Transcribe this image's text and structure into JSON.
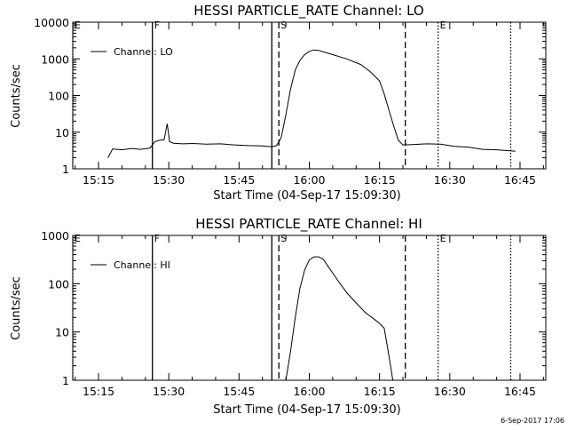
{
  "stamp": "6-Sep-2017 17:06",
  "chart_data": [
    {
      "type": "line",
      "title": "HESSI PARTICLE_RATE Channel: LO",
      "xlabel": "Start Time (04-Sep-17 15:09:30)",
      "ylabel": "Counts/sec",
      "yscale": "log",
      "ylim": [
        1,
        10000
      ],
      "xlim": [
        "15:09:30",
        "16:50:30"
      ],
      "xticks": [
        "15:15",
        "15:30",
        "15:45",
        "16:00",
        "16:15",
        "16:30",
        "16:45"
      ],
      "yticks": [
        "1",
        "10",
        "100",
        "1000",
        "10000"
      ],
      "legend": {
        "position": "top-left",
        "entries": [
          "Channel: LO"
        ]
      },
      "markers": [
        {
          "label": "F",
          "time": "15:26:30",
          "style": "solid"
        },
        {
          "label": "",
          "time": "15:52:00",
          "style": "solid"
        },
        {
          "label": "S",
          "time": "15:53:30",
          "style": "dashed"
        },
        {
          "label": "",
          "time": "16:20:30",
          "style": "dashed"
        },
        {
          "label": "E",
          "time": "16:27:30",
          "style": "dotted"
        },
        {
          "label": "",
          "time": "16:43:00",
          "style": "dotted"
        }
      ],
      "edge_markers": [
        {
          "label": "E",
          "time": "15:09:30",
          "style": "dotted"
        }
      ],
      "series": [
        {
          "name": "Channel: LO",
          "x": [
            "15:17:00",
            "15:18:00",
            "15:20:00",
            "15:22:00",
            "15:24:00",
            "15:26:00",
            "15:27:00",
            "15:28:00",
            "15:29:00",
            "15:29:40",
            "15:30:10",
            "15:31:00",
            "15:33:00",
            "15:35:00",
            "15:38:00",
            "15:41:00",
            "15:44:00",
            "15:47:00",
            "15:50:00",
            "15:52:00",
            "15:53:00",
            "15:54:00",
            "15:55:00",
            "15:56:00",
            "15:57:00",
            "15:58:00",
            "15:59:00",
            "16:00:00",
            "16:01:00",
            "16:02:00",
            "16:03:00",
            "16:05:00",
            "16:08:00",
            "16:11:00",
            "16:13:00",
            "16:15:00",
            "16:16:00",
            "16:17:00",
            "16:18:00",
            "16:19:00",
            "16:20:00",
            "16:22:00",
            "16:25:00",
            "16:28:00",
            "16:31:00",
            "16:34:00",
            "16:37:00",
            "16:40:00",
            "16:43:00",
            "16:44:00"
          ],
          "y": [
            2.0,
            3.5,
            3.3,
            3.6,
            3.4,
            3.7,
            5.5,
            6.0,
            6.2,
            17,
            5.5,
            5.0,
            4.8,
            4.9,
            4.7,
            4.8,
            4.5,
            4.3,
            4.2,
            4.0,
            4.3,
            7,
            30,
            150,
            500,
            900,
            1300,
            1600,
            1750,
            1700,
            1550,
            1300,
            1000,
            700,
            450,
            250,
            110,
            40,
            15,
            6,
            4.5,
            4.6,
            4.8,
            4.7,
            4.1,
            3.9,
            3.4,
            3.3,
            3.1,
            3.0
          ]
        }
      ]
    },
    {
      "type": "line",
      "title": "HESSI PARTICLE_RATE Channel: HI",
      "xlabel": "Start Time (04-Sep-17 15:09:30)",
      "ylabel": "Counts/sec",
      "yscale": "log",
      "ylim": [
        1,
        1000
      ],
      "xlim": [
        "15:09:30",
        "16:50:30"
      ],
      "xticks": [
        "15:15",
        "15:30",
        "15:45",
        "16:00",
        "16:15",
        "16:30",
        "16:45"
      ],
      "yticks": [
        "1",
        "10",
        "100",
        "1000"
      ],
      "legend": {
        "position": "top-left",
        "entries": [
          "Channel: HI"
        ]
      },
      "markers": [
        {
          "label": "F",
          "time": "15:26:30",
          "style": "solid"
        },
        {
          "label": "",
          "time": "15:52:00",
          "style": "solid"
        },
        {
          "label": "S",
          "time": "15:53:30",
          "style": "dashed"
        },
        {
          "label": "",
          "time": "16:20:30",
          "style": "dashed"
        },
        {
          "label": "E",
          "time": "16:27:30",
          "style": "dotted"
        },
        {
          "label": "",
          "time": "16:43:00",
          "style": "dotted"
        }
      ],
      "edge_markers": [
        {
          "label": "E",
          "time": "15:09:30",
          "style": "dotted"
        }
      ],
      "series": [
        {
          "name": "Channel: HI",
          "x": [
            "15:55:00",
            "15:56:00",
            "15:57:00",
            "15:58:00",
            "15:59:00",
            "16:00:00",
            "16:01:00",
            "16:02:00",
            "16:03:00",
            "16:04:00",
            "16:06:00",
            "16:08:00",
            "16:10:00",
            "16:12:00",
            "16:14:00",
            "16:15:00",
            "16:16:00",
            "16:16:40",
            "16:17:20",
            "16:17:50"
          ],
          "y": [
            1.0,
            4,
            20,
            80,
            190,
            310,
            360,
            360,
            320,
            230,
            120,
            65,
            40,
            25,
            18,
            15,
            12,
            5,
            2,
            1.0
          ]
        }
      ]
    }
  ]
}
